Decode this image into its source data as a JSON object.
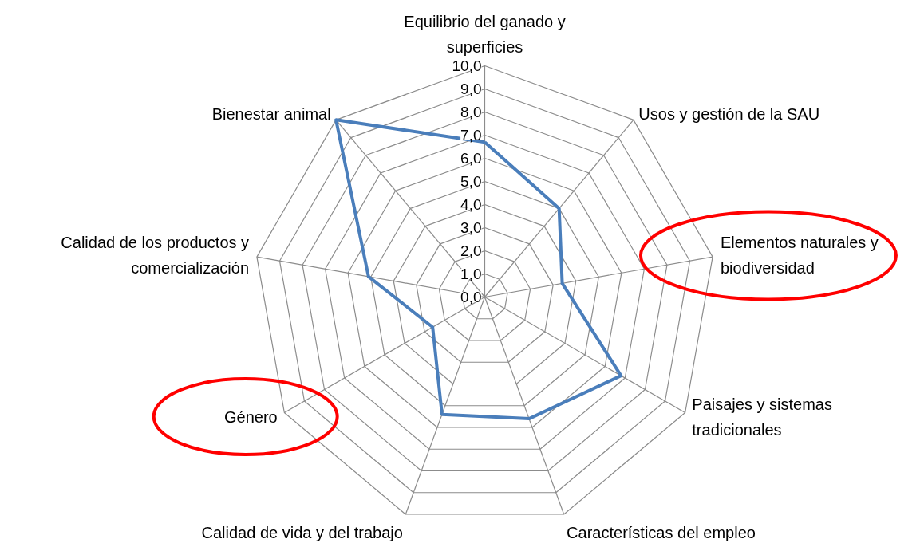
{
  "chart_data": {
    "type": "radar",
    "categories": [
      "Equilibrio del ganado y superficies",
      "Usos y gestión de la SAU",
      "Elementos naturales y biodiversidad",
      "Paisajes y sistemas tradicionales",
      "Características del empleo",
      "Calidad de vida y del trabajo",
      "Género",
      "Calidad de los productos y comercialización",
      "Bienestar animal"
    ],
    "series": [
      {
        "color": "#4a7ebb",
        "values": [
          6.7,
          5.0,
          3.4,
          6.8,
          5.6,
          5.4,
          2.6,
          5.1,
          10.0
        ]
      }
    ],
    "ylim": [
      0,
      10
    ],
    "yticks": [
      {
        "value": 0,
        "label": "0,0"
      },
      {
        "value": 1,
        "label": "1,0"
      },
      {
        "value": 2,
        "label": "2,0"
      },
      {
        "value": 3,
        "label": "3,0"
      },
      {
        "value": 4,
        "label": "4,0"
      },
      {
        "value": 5,
        "label": "5,0"
      },
      {
        "value": 6,
        "label": "6,0"
      },
      {
        "value": 7,
        "label": "7,0"
      },
      {
        "value": 8,
        "label": "8,0"
      },
      {
        "value": 9,
        "label": "9,0"
      },
      {
        "value": 10,
        "label": "10,0"
      }
    ],
    "grid": true,
    "marker": "none",
    "line_style": "solid"
  }
}
